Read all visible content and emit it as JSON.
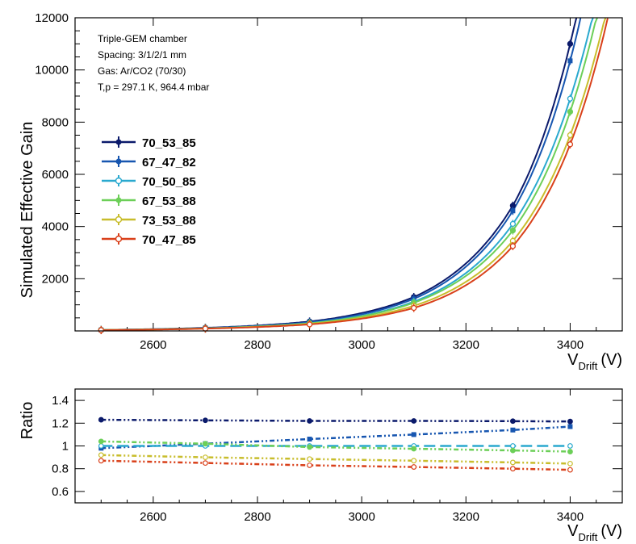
{
  "chart_data": [
    {
      "type": "line",
      "title": "",
      "xlabel": {
        "main": "V",
        "sub": "Drift",
        "unit": "(V)"
      },
      "ylabel": "Simulated Effective Gain",
      "xlim": [
        2450,
        3500
      ],
      "ylim": [
        0,
        12000
      ],
      "x_ticks": [
        2600,
        2800,
        3000,
        3200,
        3400
      ],
      "y_ticks": [
        2000,
        4000,
        6000,
        8000,
        10000,
        12000
      ],
      "info_lines": [
        "Triple-GEM chamber",
        "Spacing: 3/1/2/1 mm",
        "Gas: Ar/CO2 (70/30)",
        "T,p = 297.1 K, 964.4 mbar"
      ],
      "x": [
        2500,
        2700,
        2900,
        3100,
        3290,
        3400
      ],
      "series": [
        {
          "name": "70_53_85",
          "color": "#0b1a6b",
          "marker": "filled",
          "values": [
            40,
            120,
            360,
            1300,
            4800,
            11000
          ]
        },
        {
          "name": "67_47_82",
          "color": "#1756b0",
          "marker": "filled-square",
          "values": [
            38,
            110,
            330,
            1230,
            4600,
            10350
          ]
        },
        {
          "name": "70_50_85",
          "color": "#2aa9cf",
          "marker": "open",
          "values": [
            36,
            100,
            300,
            1120,
            4100,
            8900
          ]
        },
        {
          "name": "67_53_88",
          "color": "#6ccf58",
          "marker": "filled",
          "values": [
            35,
            98,
            290,
            1080,
            3850,
            8400
          ]
        },
        {
          "name": "73_53_88",
          "color": "#c8bd2c",
          "marker": "open",
          "values": [
            33,
            92,
            270,
            960,
            3450,
            7500
          ]
        },
        {
          "name": "70_47_85",
          "color": "#d9401a",
          "marker": "open",
          "values": [
            30,
            88,
            250,
            880,
            3250,
            7150
          ]
        }
      ]
    },
    {
      "type": "line",
      "title": "",
      "xlabel": {
        "main": "V",
        "sub": "Drift",
        "unit": "(V)"
      },
      "ylabel": "Ratio",
      "xlim": [
        2450,
        3500
      ],
      "ylim": [
        0.5,
        1.5
      ],
      "x_ticks": [
        2600,
        2800,
        3000,
        3200,
        3400
      ],
      "y_ticks": [
        0.6,
        0.8,
        1,
        1.2,
        1.4
      ],
      "y_tick_labels": [
        "0.6",
        "0.8",
        "1",
        "1.2",
        "1.4"
      ],
      "x": [
        2500,
        2700,
        2900,
        3100,
        3290,
        3400
      ],
      "series": [
        {
          "name": "70_53_85",
          "color": "#0b1a6b",
          "values": [
            1.23,
            1.225,
            1.22,
            1.22,
            1.218,
            1.215
          ]
        },
        {
          "name": "67_47_82",
          "color": "#1756b0",
          "values": [
            0.98,
            1.02,
            1.06,
            1.1,
            1.14,
            1.17
          ]
        },
        {
          "name": "70_50_85",
          "color": "#2aa9cf",
          "values": [
            1.0,
            1.0,
            1.0,
            1.0,
            1.0,
            1.0
          ]
        },
        {
          "name": "67_53_88",
          "color": "#6ccf58",
          "values": [
            1.04,
            1.02,
            0.99,
            0.975,
            0.96,
            0.95
          ]
        },
        {
          "name": "73_53_88",
          "color": "#c8bd2c",
          "values": [
            0.92,
            0.9,
            0.885,
            0.87,
            0.855,
            0.845
          ]
        },
        {
          "name": "70_47_85",
          "color": "#d9401a",
          "values": [
            0.87,
            0.85,
            0.83,
            0.815,
            0.8,
            0.79
          ]
        }
      ]
    }
  ]
}
